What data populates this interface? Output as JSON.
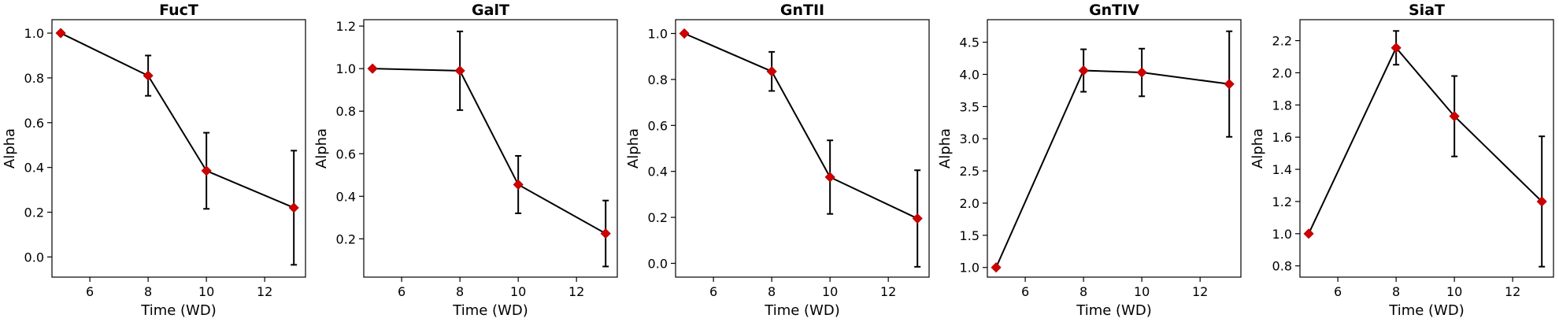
{
  "chart_data": [
    {
      "type": "line",
      "title": "FucT",
      "xlabel": "Time (WD)",
      "ylabel": "Alpha",
      "x": [
        5,
        8,
        10,
        13
      ],
      "values": [
        1.0,
        0.81,
        0.385,
        0.22
      ],
      "error": [
        0.0,
        0.09,
        0.17,
        0.255
      ],
      "xlim": [
        4.7,
        13.4
      ],
      "ylim": [
        -0.09,
        1.06
      ],
      "xticks": [
        6,
        8,
        10,
        12
      ],
      "yticks": [
        0.0,
        0.2,
        0.4,
        0.6,
        0.8,
        1.0
      ],
      "xtick_labels": [
        "6",
        "8",
        "10",
        "12"
      ],
      "ytick_labels": [
        "0.0",
        "0.2",
        "0.4",
        "0.6",
        "0.8",
        "1.0"
      ],
      "marker_color": "#d00000",
      "line_color": "#000000",
      "grid": false
    },
    {
      "type": "line",
      "title": "GalT",
      "xlabel": "Time (WD)",
      "ylabel": "Alpha",
      "x": [
        5,
        8,
        10,
        13
      ],
      "values": [
        1.0,
        0.99,
        0.455,
        0.225
      ],
      "error": [
        0.0,
        0.185,
        0.135,
        0.155
      ],
      "xlim": [
        4.7,
        13.4
      ],
      "ylim": [
        0.02,
        1.23
      ],
      "xticks": [
        6,
        8,
        10,
        12
      ],
      "yticks": [
        0.2,
        0.4,
        0.6,
        0.8,
        1.0,
        1.2
      ],
      "xtick_labels": [
        "6",
        "8",
        "10",
        "12"
      ],
      "ytick_labels": [
        "0.2",
        "0.4",
        "0.6",
        "0.8",
        "1.0",
        "1.2"
      ],
      "marker_color": "#d00000",
      "line_color": "#000000",
      "grid": false
    },
    {
      "type": "line",
      "title": "GnTII",
      "xlabel": "Time (WD)",
      "ylabel": "Alpha",
      "x": [
        5,
        8,
        10,
        13
      ],
      "values": [
        1.0,
        0.835,
        0.375,
        0.195
      ],
      "error": [
        0.0,
        0.085,
        0.16,
        0.21
      ],
      "xlim": [
        4.7,
        13.4
      ],
      "ylim": [
        -0.06,
        1.06
      ],
      "xticks": [
        6,
        8,
        10,
        12
      ],
      "yticks": [
        0.0,
        0.2,
        0.4,
        0.6,
        0.8,
        1.0
      ],
      "xtick_labels": [
        "6",
        "8",
        "10",
        "12"
      ],
      "ytick_labels": [
        "0.0",
        "0.2",
        "0.4",
        "0.6",
        "0.8",
        "1.0"
      ],
      "marker_color": "#d00000",
      "line_color": "#000000",
      "grid": false
    },
    {
      "type": "line",
      "title": "GnTIV",
      "xlabel": "Time (WD)",
      "ylabel": "Alpha",
      "x": [
        5,
        8,
        10,
        13
      ],
      "values": [
        1.0,
        4.06,
        4.03,
        3.85
      ],
      "error": [
        0.0,
        0.33,
        0.37,
        0.82
      ],
      "xlim": [
        4.7,
        13.4
      ],
      "ylim": [
        0.85,
        4.85
      ],
      "xticks": [
        6,
        8,
        10,
        12
      ],
      "yticks": [
        1.0,
        1.5,
        2.0,
        2.5,
        3.0,
        3.5,
        4.0,
        4.5
      ],
      "xtick_labels": [
        "6",
        "8",
        "10",
        "12"
      ],
      "ytick_labels": [
        "1.0",
        "1.5",
        "2.0",
        "2.5",
        "3.0",
        "3.5",
        "4.0",
        "4.5"
      ],
      "marker_color": "#d00000",
      "line_color": "#000000",
      "grid": false
    },
    {
      "type": "line",
      "title": "SiaT",
      "xlabel": "Time (WD)",
      "ylabel": "Alpha",
      "x": [
        5,
        8,
        10,
        13
      ],
      "values": [
        1.0,
        2.155,
        1.73,
        1.2
      ],
      "error": [
        0.0,
        0.105,
        0.25,
        0.405
      ],
      "xlim": [
        4.7,
        13.4
      ],
      "ylim": [
        0.73,
        2.33
      ],
      "xticks": [
        6,
        8,
        10,
        12
      ],
      "yticks": [
        0.8,
        1.0,
        1.2,
        1.4,
        1.6,
        1.8,
        2.0,
        2.2
      ],
      "xtick_labels": [
        "6",
        "8",
        "10",
        "12"
      ],
      "ytick_labels": [
        "0.8",
        "1.0",
        "1.2",
        "1.4",
        "1.6",
        "1.8",
        "2.0",
        "2.2"
      ],
      "marker_color": "#d00000",
      "line_color": "#000000",
      "grid": false
    }
  ]
}
